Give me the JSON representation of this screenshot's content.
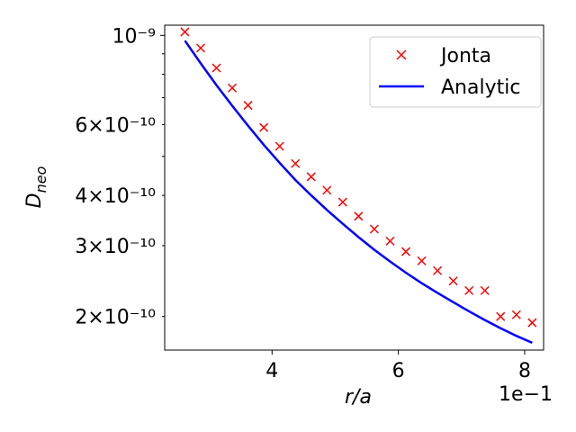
{
  "chart_data": {
    "type": "line",
    "x_scale": "linear",
    "y_scale": "log",
    "xlim": [
      0.23,
      0.83
    ],
    "ylim": [
      1.65e-10,
      1.06e-09
    ],
    "x_ticks": [
      0.4,
      0.6,
      0.8
    ],
    "x_tick_labels": [
      "4",
      "6",
      "8"
    ],
    "x_offset_text": "1e−1",
    "y_major_ticks": [
      1e-09
    ],
    "y_major_tick_labels": [
      "10⁻⁹"
    ],
    "y_minor_ticks": [
      2e-10,
      3e-10,
      4e-10,
      5e-10,
      6e-10,
      7e-10,
      8e-10,
      9e-10
    ],
    "y_minor_tick_labels": {
      "2e-10": "2×10⁻¹⁰",
      "3e-10": "3×10⁻¹⁰",
      "4e-10": "4×10⁻¹⁰",
      "6e-10": "6×10⁻¹⁰"
    },
    "xlabel": "r/a",
    "ylabel": "D_neo",
    "grid": false,
    "legend_placement": "top-right",
    "series": [
      {
        "name": "Jonta",
        "style": "markers",
        "marker": "x",
        "color": "#ff0000",
        "x": [
          0.262,
          0.287,
          0.312,
          0.337,
          0.362,
          0.387,
          0.412,
          0.437,
          0.462,
          0.487,
          0.512,
          0.537,
          0.562,
          0.587,
          0.612,
          0.637,
          0.662,
          0.687,
          0.712,
          0.737,
          0.762,
          0.787,
          0.812
        ],
        "y": [
          1.02e-09,
          9.3e-10,
          8.3e-10,
          7.4e-10,
          6.7e-10,
          5.9e-10,
          5.3e-10,
          4.8e-10,
          4.45e-10,
          4.12e-10,
          3.85e-10,
          3.55e-10,
          3.3e-10,
          3.08e-10,
          2.9e-10,
          2.75e-10,
          2.6e-10,
          2.45e-10,
          2.32e-10,
          2.32e-10,
          2e-10,
          2.02e-10,
          1.93e-10
        ]
      },
      {
        "name": "Analytic",
        "style": "line",
        "color": "#0000ff",
        "x": [
          0.262,
          0.287,
          0.312,
          0.337,
          0.362,
          0.387,
          0.412,
          0.437,
          0.462,
          0.487,
          0.512,
          0.537,
          0.562,
          0.587,
          0.612,
          0.637,
          0.662,
          0.687,
          0.712,
          0.737,
          0.762,
          0.787,
          0.812
        ],
        "y": [
          9.7e-10,
          8.52e-10,
          7.52e-10,
          6.68e-10,
          5.96e-10,
          5.34e-10,
          4.82e-10,
          4.37e-10,
          4e-10,
          3.68e-10,
          3.4e-10,
          3.15e-10,
          2.93e-10,
          2.74e-10,
          2.57e-10,
          2.42e-10,
          2.29e-10,
          2.17e-10,
          2.06e-10,
          1.96e-10,
          1.87e-10,
          1.79e-10,
          1.72e-10
        ]
      }
    ]
  }
}
